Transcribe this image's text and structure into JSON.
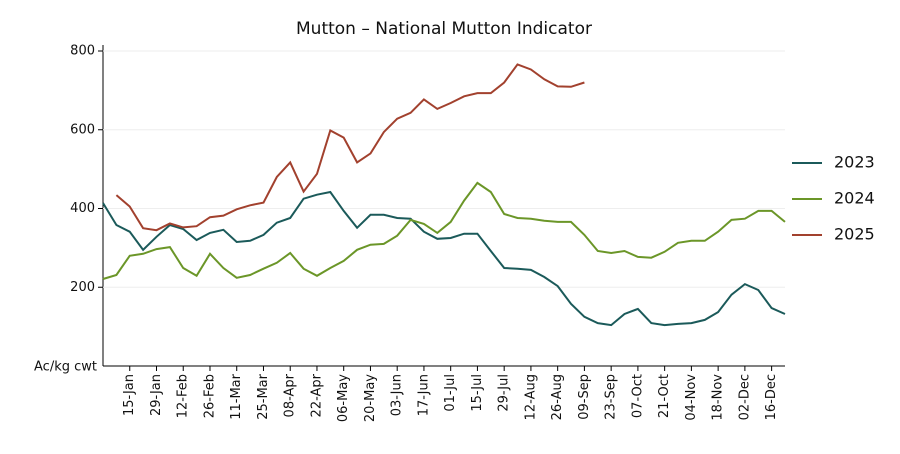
{
  "chart_data": {
    "type": "line",
    "title": "Mutton – National Mutton Indicator",
    "y_label": "Ac/kg cwt",
    "categories": [
      null,
      null,
      "15-Jan",
      null,
      "29-Jan",
      null,
      "12-Feb",
      null,
      "26-Feb",
      null,
      "11-Mar",
      null,
      "25-Mar",
      null,
      "08-Apr",
      null,
      "22-Apr",
      null,
      "06-May",
      null,
      "20-May",
      null,
      "03-Jun",
      null,
      "17-Jun",
      null,
      "01-Jul",
      null,
      "15-Jul",
      null,
      "29-Jul",
      null,
      "12-Aug",
      null,
      "26-Aug",
      null,
      "09-Sep",
      null,
      "23-Sep",
      null,
      "07-Oct",
      null,
      "21-Oct",
      null,
      "04-Nov",
      null,
      "18-Nov",
      null,
      "02-Dec",
      null,
      "16-Dec",
      null
    ],
    "ylim": [
      0,
      800
    ],
    "yticks": [
      200,
      400,
      600,
      800
    ],
    "grid": true,
    "series": [
      {
        "name": "2023",
        "color": "#1b5a5a",
        "values": [
          414,
          358,
          341,
          295,
          328,
          358,
          348,
          320,
          338,
          346,
          315,
          318,
          333,
          364,
          376,
          425,
          435,
          442,
          394,
          351,
          384,
          384,
          376,
          374,
          341,
          323,
          325,
          336,
          336,
          292,
          249,
          247,
          244,
          226,
          203,
          158,
          125,
          109,
          104,
          132,
          145,
          109,
          104,
          107,
          109,
          117,
          137,
          181,
          208,
          193,
          147,
          132
        ]
      },
      {
        "name": "2024",
        "color": "#6b9628",
        "values": [
          221,
          231,
          280,
          285,
          297,
          302,
          249,
          229,
          285,
          249,
          224,
          231,
          247,
          262,
          287,
          247,
          229,
          249,
          267,
          295,
          308,
          310,
          331,
          371,
          361,
          338,
          366,
          420,
          465,
          442,
          386,
          376,
          374,
          369,
          366,
          366,
          333,
          292,
          287,
          292,
          277,
          275,
          290,
          313,
          318,
          318,
          341,
          371,
          374,
          394,
          394,
          366
        ]
      },
      {
        "name": "2025",
        "color": "#a2412e",
        "values": [
          null,
          434,
          405,
          350,
          345,
          362,
          352,
          355,
          378,
          382,
          398,
          408,
          415,
          480,
          517,
          443,
          488,
          598,
          580,
          517,
          540,
          594,
          628,
          643,
          677,
          653,
          668,
          685,
          693,
          693,
          720,
          766,
          753,
          728,
          710,
          709,
          720,
          null,
          null,
          null,
          null,
          null,
          null,
          null,
          null,
          null,
          null,
          null,
          null,
          null,
          null,
          null
        ]
      }
    ]
  }
}
